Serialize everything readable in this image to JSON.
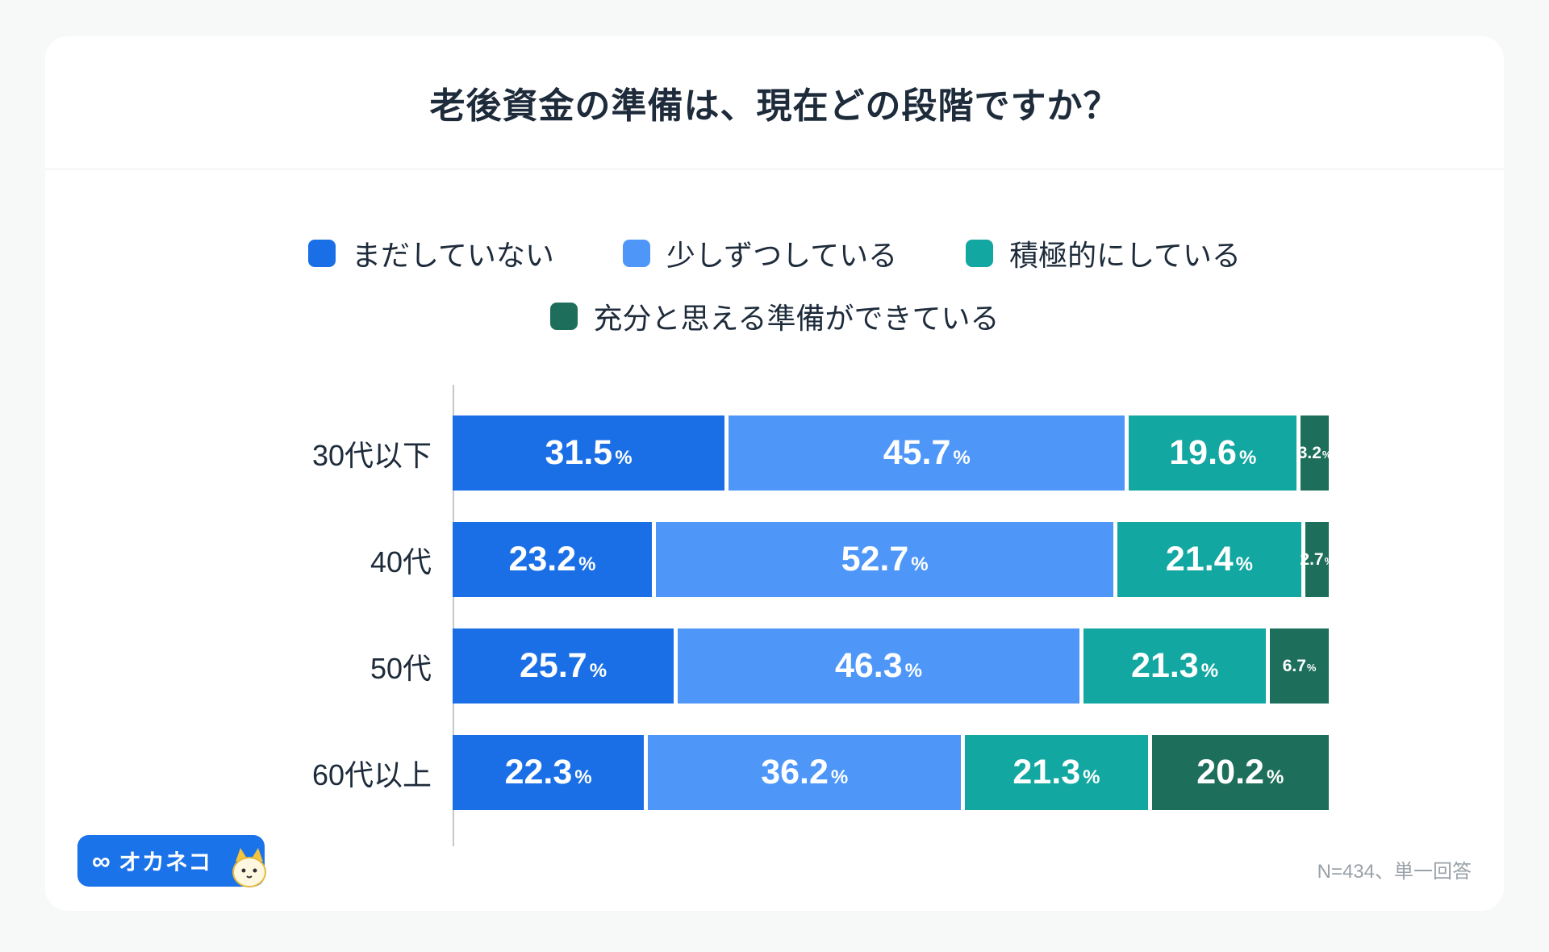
{
  "page": {
    "title": "老後資金の準備は、現在どの段階ですか？",
    "note": "N=434、単一回答"
  },
  "logo": {
    "symbol": "∞",
    "text": "オカネコ"
  },
  "colors": {
    "page_background": "#f7f8f8",
    "card_background": "#ffffff",
    "title_text": "#1e2b3b",
    "axis_line": "#c5c8cb",
    "note_text": "#9aa1a8",
    "logo_background": "#1a73e8",
    "bar_gap": "#ffffff"
  },
  "chart_data": {
    "type": "bar",
    "orientation": "horizontal",
    "stacked": true,
    "title": "老後資金の準備は、現在どの段階ですか？",
    "categories": [
      "30代以下",
      "40代",
      "50代",
      "60代以上"
    ],
    "series": [
      {
        "name": "まだしていない",
        "color": "#1b6fe6",
        "values": [
          31.5,
          23.2,
          25.7,
          22.3
        ]
      },
      {
        "name": "少しずつしている",
        "color": "#4e97f9",
        "values": [
          45.7,
          52.7,
          46.3,
          36.2
        ]
      },
      {
        "name": "積極的にしている",
        "color": "#12a7a1",
        "values": [
          19.6,
          21.4,
          21.3,
          21.3
        ]
      },
      {
        "name": "充分と思える準備ができている",
        "color": "#1d6e5b",
        "values": [
          3.2,
          2.7,
          6.7,
          20.2
        ]
      }
    ],
    "value_suffix": "%",
    "xlim": [
      0,
      100
    ],
    "grid": false,
    "legend_position": "top",
    "legend_rows": [
      [
        0,
        1,
        2
      ],
      [
        3
      ]
    ],
    "small_label_threshold": 10
  }
}
